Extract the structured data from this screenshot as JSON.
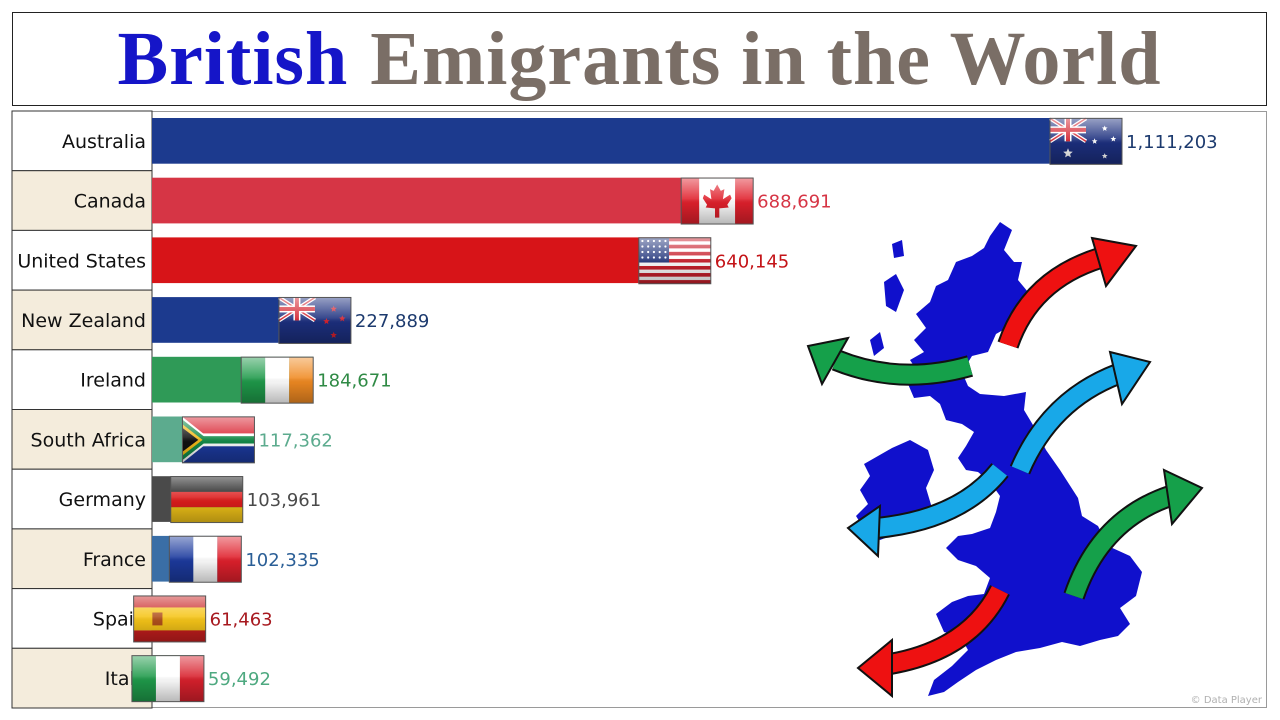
{
  "header": {
    "title_first": "British",
    "title_rest": "Emigrants in the World"
  },
  "credit": "© Data Player",
  "chart_data": {
    "type": "bar",
    "orientation": "horizontal",
    "title": "British Emigrants in the World",
    "categories": [
      "Australia",
      "Canada",
      "United States",
      "New Zealand",
      "Ireland",
      "South Africa",
      "Germany",
      "France",
      "Spain",
      "Italy"
    ],
    "values": [
      1111203,
      688691,
      640145,
      227889,
      184671,
      117362,
      103961,
      102335,
      61463,
      59492
    ],
    "value_labels": [
      "1,111,203",
      "688,691",
      "640,145",
      "227,889",
      "184,671",
      "117,362",
      "103,961",
      "102,335",
      "61,463",
      "59,492"
    ],
    "colors": [
      "#1c3a8e",
      "#d63545",
      "#d71418",
      "#1c3a8e",
      "#2f9a57",
      "#5cab8e",
      "#4a4a4a",
      "#3a6ea6",
      "#b71c22",
      "#4ea980"
    ],
    "label_colors": [
      "#1c3a6e",
      "#d63545",
      "#c41418",
      "#1c3a6e",
      "#2f8a45",
      "#5cab8e",
      "#4a4a4a",
      "#2a5e96",
      "#a7191f",
      "#4ea980"
    ],
    "flags": [
      "australia-flag",
      "canada-flag",
      "usa-flag",
      "new-zealand-flag",
      "ireland-flag",
      "south-africa-flag",
      "germany-flag",
      "france-flag",
      "spain-flag",
      "italy-flag"
    ],
    "row_backgrounds": [
      "#ffffff",
      "#f4ecdc",
      "#ffffff",
      "#f4ecdc",
      "#ffffff",
      "#f4ecdc",
      "#ffffff",
      "#f4ecdc",
      "#ffffff",
      "#f4ecdc"
    ],
    "xlim": [
      0,
      1111203
    ],
    "grid": false,
    "legend": "none"
  }
}
